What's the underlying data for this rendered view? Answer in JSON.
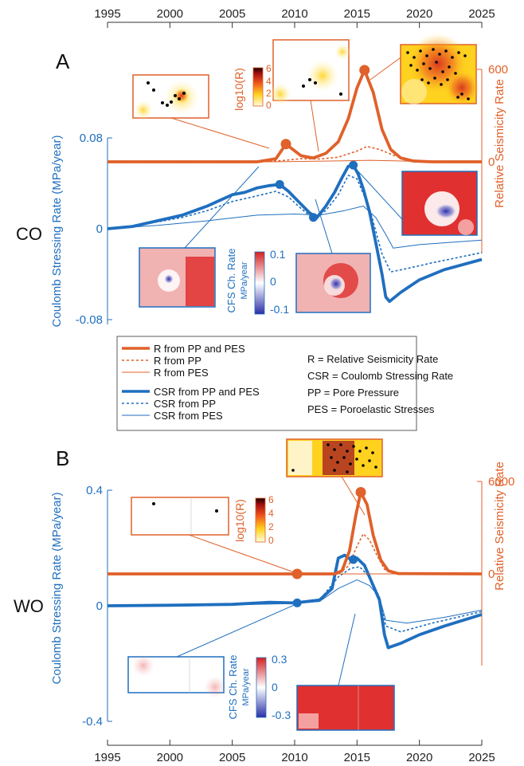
{
  "colors": {
    "rate": "#e0612a",
    "stress": "#1f6fbf",
    "tick": "#333333"
  },
  "x_axis": {
    "ticks": [
      "1995",
      "2000",
      "2005",
      "2010",
      "2015",
      "2020",
      "2025"
    ]
  },
  "legend": {
    "entries": [
      "R from PP and PES",
      "R from PP",
      "R from PES",
      "CSR from PP and PES",
      "CSR from PP",
      "CSR from PES"
    ],
    "definitions": [
      "R = Relative Seismicity Rate",
      "CSR = Coulomb Stressing Rate",
      "PP = Pore Pressure",
      "PES = Poroelastic Stresses"
    ]
  },
  "chart_data": [
    {
      "type": "line",
      "panel_label": "A",
      "region_label": "CO",
      "xlim": [
        1995,
        2025
      ],
      "xlabel": "",
      "ylabel_left": "Coulomb Stressing Rate (MPa/year)",
      "ylabel_right": "Relative Seismicity Rate",
      "left_ticks": [
        "0.08",
        "0",
        "-0.08"
      ],
      "right_ticks": [
        "600",
        "0"
      ],
      "ylim_left": [
        -0.08,
        0.08
      ],
      "ylim_right": [
        -700,
        700
      ],
      "rate_series": [
        {
          "name": "R from PP and PES",
          "style": "thick",
          "x": [
            1995,
            2007,
            2008.5,
            2009.3,
            2010.5,
            2011.5,
            2012.5,
            2013.5,
            2014.3,
            2015,
            2015.6,
            2016.3,
            2017,
            2017.7,
            2018.5,
            2019.5,
            2021,
            2025
          ],
          "values": [
            0,
            0,
            20,
            115,
            40,
            25,
            55,
            130,
            280,
            480,
            595,
            450,
            210,
            80,
            25,
            5,
            0,
            0
          ]
        },
        {
          "name": "R from PP",
          "style": "dashed",
          "x": [
            1995,
            2007,
            2009,
            2010.5,
            2012,
            2013.5,
            2015,
            2015.8,
            2016.8,
            2018,
            2019,
            2020.5,
            2025
          ],
          "values": [
            0,
            0,
            8,
            20,
            18,
            30,
            70,
            100,
            80,
            40,
            15,
            3,
            0
          ]
        },
        {
          "name": "R from PES",
          "style": "thin",
          "x": [
            1995,
            2008,
            2011,
            2014,
            2016,
            2018,
            2020,
            2025
          ],
          "values": [
            0,
            0,
            3,
            6,
            10,
            6,
            2,
            0
          ]
        }
      ],
      "stress_series": [
        {
          "name": "CSR from PP and PES",
          "style": "thick",
          "x": [
            1995,
            1997,
            1999,
            2001,
            2003,
            2004,
            2005,
            2006,
            2007,
            2008,
            2008.8,
            2009.5,
            2010.3,
            2011.2,
            2011.8,
            2012.5,
            2013.2,
            2013.8,
            2014.3,
            2014.7,
            2015.1,
            2015.5,
            2016,
            2016.5,
            2017,
            2017.3,
            2017.6,
            2018.5,
            2020,
            2022,
            2025
          ],
          "values": [
            0,
            0.002,
            0.007,
            0.012,
            0.02,
            0.025,
            0.03,
            0.032,
            0.036,
            0.038,
            0.039,
            0.033,
            0.024,
            0.014,
            0.01,
            0.02,
            0.032,
            0.045,
            0.055,
            0.056,
            0.048,
            0.035,
            0.015,
            -0.012,
            -0.04,
            -0.06,
            -0.064,
            -0.056,
            -0.045,
            -0.036,
            -0.027
          ]
        },
        {
          "name": "CSR from PP",
          "style": "dashed",
          "x": [
            1995,
            1997,
            1999,
            2001,
            2003,
            2005,
            2007,
            2008.5,
            2009.5,
            2010.5,
            2011.5,
            2012.5,
            2013.5,
            2014.3,
            2015,
            2016,
            2017,
            2017.7,
            2019,
            2021,
            2025
          ],
          "values": [
            0,
            0.002,
            0.006,
            0.01,
            0.016,
            0.024,
            0.029,
            0.033,
            0.028,
            0.018,
            0.009,
            0.016,
            0.03,
            0.047,
            0.044,
            0.018,
            -0.022,
            -0.038,
            -0.035,
            -0.03,
            -0.021
          ]
        },
        {
          "name": "CSR from PES",
          "style": "thin",
          "x": [
            1995,
            1999,
            2003,
            2007,
            2010,
            2012,
            2014,
            2015.5,
            2016.5,
            2017.3,
            2017.9,
            2020,
            2025
          ],
          "values": [
            0,
            0.003,
            0.007,
            0.012,
            0.013,
            0.012,
            0.016,
            0.02,
            0.01,
            -0.005,
            -0.017,
            -0.014,
            -0.01
          ]
        }
      ],
      "markers": [
        {
          "series": "rate",
          "x": 2009.3,
          "value": 115
        },
        {
          "series": "rate",
          "x": 2015.6,
          "value": 595
        },
        {
          "series": "stress",
          "x": 2008.8,
          "value": 0.039
        },
        {
          "series": "stress",
          "x": 2011.5,
          "value": 0.01
        },
        {
          "series": "stress",
          "x": 2014.7,
          "value": 0.056
        }
      ],
      "colorbars": [
        {
          "title": "log10(R)",
          "ticks": [
            "6",
            "4",
            "2",
            "0"
          ]
        },
        {
          "title": "CFS Ch. Rate",
          "unit": "MPa/year",
          "ticks": [
            "0.1",
            "0",
            "-0.1"
          ]
        }
      ]
    },
    {
      "type": "line",
      "panel_label": "B",
      "region_label": "WO",
      "xlim": [
        1995,
        2025
      ],
      "xlabel": "",
      "ylabel_left": "Coulomb Stressing Rate (MPa/year)",
      "ylabel_right": "Relative Seismicity Rate",
      "left_ticks": [
        "0.4",
        "0",
        "-0.4"
      ],
      "right_ticks": [
        "6000",
        "0"
      ],
      "ylim_left": [
        -0.4,
        0.4
      ],
      "ylim_right": [
        -7000,
        7000
      ],
      "rate_series": [
        {
          "name": "R from PP and PES",
          "style": "thick",
          "x": [
            1995,
            2013.2,
            2013.8,
            2014.4,
            2014.9,
            2015.3,
            2015.8,
            2016.3,
            2016.9,
            2017.5,
            2018.3,
            2025
          ],
          "values": [
            0,
            0,
            200,
            1500,
            3800,
            5300,
            4500,
            2500,
            900,
            200,
            20,
            0
          ]
        },
        {
          "name": "R from PP",
          "style": "dashed",
          "x": [
            1995,
            2013.5,
            2014.3,
            2015,
            2015.5,
            2016,
            2016.6,
            2017.2,
            2018,
            2025
          ],
          "values": [
            0,
            0,
            500,
            1800,
            2600,
            2200,
            1200,
            300,
            30,
            0
          ]
        },
        {
          "name": "R from PES",
          "style": "thin",
          "x": [
            1995,
            2025
          ],
          "values": [
            0,
            0
          ]
        }
      ],
      "stress_series": [
        {
          "name": "CSR from PP and PES",
          "style": "thick",
          "x": [
            1995,
            2000,
            2005,
            2008,
            2010,
            2012,
            2013,
            2013.5,
            2014,
            2014.5,
            2015,
            2015.6,
            2016.2,
            2016.8,
            2017.2,
            2017.5,
            2018.5,
            2020,
            2022,
            2025
          ],
          "values": [
            0,
            0.002,
            0.005,
            0.012,
            0.01,
            0.02,
            0.06,
            0.165,
            0.175,
            0.16,
            0.165,
            0.14,
            0.08,
            0.02,
            -0.1,
            -0.145,
            -0.13,
            -0.1,
            -0.07,
            -0.03
          ]
        },
        {
          "name": "CSR from PP",
          "style": "dashed",
          "x": [
            1995,
            2005,
            2010,
            2012,
            2013.5,
            2014.5,
            2015.2,
            2016,
            2016.8,
            2017.3,
            2018.5,
            2021,
            2025
          ],
          "values": [
            0,
            0.004,
            0.01,
            0.02,
            0.1,
            0.13,
            0.135,
            0.1,
            0.03,
            -0.07,
            -0.09,
            -0.06,
            -0.02
          ]
        },
        {
          "name": "CSR from PES",
          "style": "thin",
          "x": [
            1995,
            2005,
            2010,
            2012,
            2013.5,
            2015,
            2016,
            2016.8,
            2017.3,
            2019,
            2022,
            2025
          ],
          "values": [
            0,
            0.003,
            0.008,
            0.015,
            0.06,
            0.09,
            0.07,
            0.03,
            -0.05,
            -0.06,
            -0.04,
            -0.015
          ]
        }
      ],
      "markers": [
        {
          "series": "rate",
          "x": 2010.2,
          "value": 0
        },
        {
          "series": "rate",
          "x": 2015.3,
          "value": 5300
        },
        {
          "series": "stress",
          "x": 2010.2,
          "value": 0.01
        },
        {
          "series": "stress",
          "x": 2014.7,
          "value": 0.16
        }
      ],
      "colorbars": [
        {
          "title": "log10(R)",
          "ticks": [
            "6",
            "4",
            "2",
            "0"
          ]
        },
        {
          "title": "CFS Ch. Rate",
          "unit": "MPa/year",
          "ticks": [
            "0.3",
            "0",
            "-0.3"
          ]
        }
      ]
    }
  ]
}
